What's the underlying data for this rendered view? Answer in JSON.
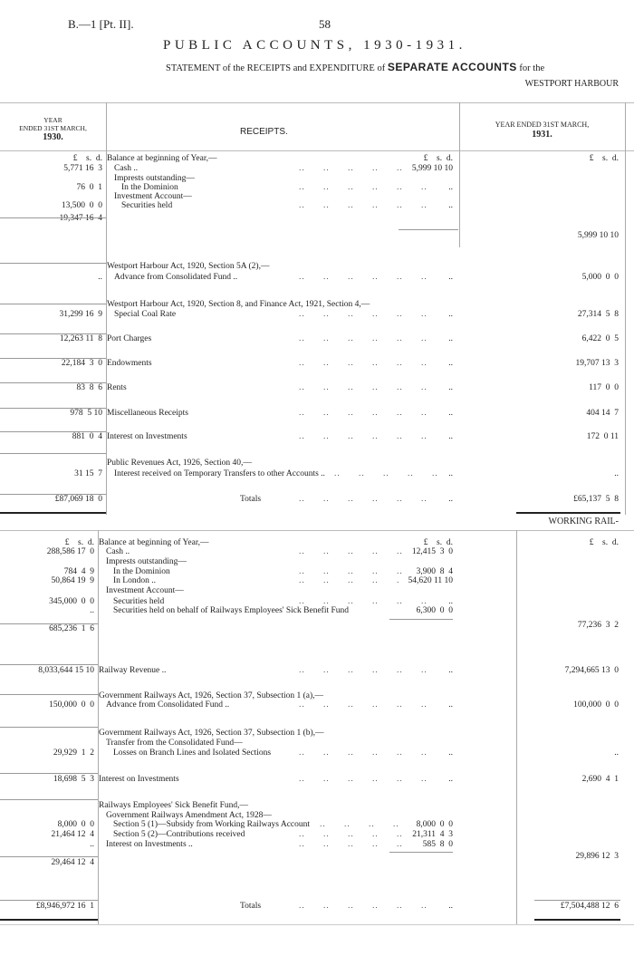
{
  "page": {
    "ref": "B.—1 [Pt. II].",
    "number": "58",
    "title": "PUBLIC ACCOUNTS, 1930-1931.",
    "statement_prefix": "STATEMENT of the RECEIPTS and EXPENDITURE of",
    "statement_bold": "SEPARATE ACCOUNTS",
    "statement_suffix": "for the"
  },
  "header": {
    "left_line1": "YEAR",
    "left_line2": "ENDED 31ST MARCH,",
    "left_year": "1930.",
    "center": "RECEIPTS.",
    "right_line1": "YEAR ENDED 31ST MARCH,",
    "right_year": "1931."
  },
  "harbour": {
    "title": "WESTPORT HARBOUR",
    "rows": [
      {
        "left": "£    s.  d.",
        "desc": "Balance at beginning of Year,—",
        "sub": "£    s.  d.",
        "right": "£    s.  d.",
        "indent": 0,
        "lead": false
      },
      {
        "left": "5,771 16  3",
        "desc": "Cash ..",
        "sub": "5,999 10 10",
        "right": "",
        "indent": 1,
        "lead": true
      },
      {
        "left": "",
        "desc": "Imprests outstanding—",
        "sub": "",
        "right": "",
        "indent": 1,
        "lead": false
      },
      {
        "left": "76  0  1",
        "desc": "In the Dominion",
        "sub": "..",
        "right": "",
        "indent": 2,
        "lead": true
      },
      {
        "left": "",
        "desc": "Investment Account—",
        "sub": "",
        "right": "",
        "indent": 1,
        "lead": false
      },
      {
        "left": "13,500  0  0",
        "desc": "Securities held",
        "sub": "..",
        "right": "",
        "indent": 2,
        "lead": true
      },
      {
        "left": "19,347 16  4",
        "desc": "",
        "sub": "",
        "right": "",
        "indent": 0,
        "lead": false
      },
      {
        "left": "",
        "desc": "",
        "sub": "",
        "right": "5,999 10 10",
        "indent": 0,
        "lead": false
      },
      {
        "left": "",
        "desc": "Westport Harbour Act, 1920, Section 5A (2),—",
        "sub": "",
        "right": "",
        "indent": 0,
        "lead": false
      },
      {
        "left": "..",
        "desc": "Advance from Consolidated Fund ..",
        "sub": "..",
        "right": "5,000  0  0",
        "indent": 1,
        "lead": true
      },
      {
        "left": "",
        "desc": "Westport Harbour Act, 1920, Section 8, and Finance Act, 1921, Section 4,—",
        "sub": "",
        "right": "",
        "indent": 0,
        "lead": false
      },
      {
        "left": "31,299 16  9",
        "desc": "Special Coal Rate",
        "sub": "..",
        "right": "27,314  5  8",
        "indent": 1,
        "lead": true
      },
      {
        "left": "12,263 11  8",
        "desc": "Port Charges",
        "sub": "..",
        "right": "6,422  0  5",
        "indent": 0,
        "lead": true
      },
      {
        "left": "22,184  3  0",
        "desc": "Endowments",
        "sub": "..",
        "right": "19,707 13  3",
        "indent": 0,
        "lead": true
      },
      {
        "left": "83  8  6",
        "desc": "Rents",
        "sub": "..",
        "right": "117  0  0",
        "indent": 0,
        "lead": true
      },
      {
        "left": "978  5 10",
        "desc": "Miscellaneous Receipts",
        "sub": "..",
        "right": "404 14  7",
        "indent": 0,
        "lead": true
      },
      {
        "left": "881  0  4",
        "desc": "Interest on Investments",
        "sub": "..",
        "right": "172  0 11",
        "indent": 0,
        "lead": true
      },
      {
        "left": "",
        "desc": "Public Revenues Act, 1926, Section 40,—",
        "sub": "",
        "right": "",
        "indent": 0,
        "lead": false
      },
      {
        "left": "31 15  7",
        "desc": "Interest received on Temporary Transfers to other Accounts ..",
        "sub": "..",
        "right": "..",
        "indent": 1,
        "lead": true
      },
      {
        "left": "£87,069 18  0",
        "desc": "Totals",
        "sub": "..",
        "right": "£65,137  5  8",
        "indent": 0,
        "lead": true,
        "total": true
      }
    ]
  },
  "railways": {
    "title": "WORKING RAIL-",
    "rows": [
      {
        "left": "£    s.  d.",
        "desc": "Balance at beginning of Year,—",
        "sub": "£    s.  d.",
        "right": "£    s.  d.",
        "indent": 0,
        "lead": false
      },
      {
        "left": "288,586 17  0",
        "desc": "Cash ..",
        "sub": "12,415  3  0",
        "right": "",
        "indent": 1,
        "lead": true
      },
      {
        "left": "",
        "desc": "Imprests outstanding—",
        "sub": "",
        "right": "",
        "indent": 1,
        "lead": false
      },
      {
        "left": "784  4  9",
        "desc": "In the Dominion",
        "sub": "3,900  8  4",
        "right": "",
        "indent": 2,
        "lead": true
      },
      {
        "left": "50,864 19  9",
        "desc": "In London ..",
        "sub": "54,620 11 10",
        "right": "",
        "indent": 2,
        "lead": true
      },
      {
        "left": "",
        "desc": "Investment Account—",
        "sub": "",
        "right": "",
        "indent": 1,
        "lead": false
      },
      {
        "left": "345,000  0  0",
        "desc": "Securities held",
        "sub": "..",
        "right": "",
        "indent": 2,
        "lead": true
      },
      {
        "left": "..",
        "desc": "Securities held on behalf of Railways Employees' Sick Benefit Fund",
        "sub": "6,300  0  0",
        "right": "",
        "indent": 2,
        "lead": false
      },
      {
        "left": "",
        "desc": "",
        "sub": "",
        "right": "77,236  3  2",
        "indent": 0,
        "lead": false
      },
      {
        "left": "685,236  1  6",
        "desc": "",
        "sub": "",
        "right": "",
        "indent": 0,
        "lead": false
      },
      {
        "left": "8,033,644 15 10",
        "desc": "Railway Revenue ..",
        "sub": "..",
        "right": "7,294,665 13  0",
        "indent": 0,
        "lead": true
      },
      {
        "left": "",
        "desc": "Government Railways Act, 1926, Section 37, Subsection 1 (a),—",
        "sub": "",
        "right": "",
        "indent": 0,
        "lead": false
      },
      {
        "left": "150,000  0  0",
        "desc": "Advance from Consolidated Fund ..",
        "sub": "..",
        "right": "100,000  0  0",
        "indent": 1,
        "lead": true
      },
      {
        "left": "",
        "desc": "Government Railways Act, 1926, Section 37, Subsection 1 (b),—",
        "sub": "",
        "right": "",
        "indent": 0,
        "lead": false
      },
      {
        "left": "",
        "desc": "Transfer from the Consolidated Fund—",
        "sub": "",
        "right": "",
        "indent": 1,
        "lead": false
      },
      {
        "left": "29,929  1  2",
        "desc": "Losses on Branch Lines and Isolated Sections",
        "sub": "..",
        "right": "..",
        "indent": 2,
        "lead": true
      },
      {
        "left": "18,698  5  3",
        "desc": "Interest on Investments",
        "sub": "..",
        "right": "2,690  4  1",
        "indent": 0,
        "lead": true
      },
      {
        "left": "",
        "desc": "Railways Employees' Sick Benefit Fund,—",
        "sub": "",
        "right": "",
        "indent": 0,
        "lead": false
      },
      {
        "left": "",
        "desc": "Government Railways Amendment Act, 1928—",
        "sub": "",
        "right": "",
        "indent": 1,
        "lead": false
      },
      {
        "left": "8,000  0  0",
        "desc": "Section 5 (1)—Subsidy from Working Railways Account",
        "sub": "8,000  0  0",
        "right": "",
        "indent": 2,
        "lead": true
      },
      {
        "left": "21,464 12  4",
        "desc": "Section 5 (2)—Contributions received",
        "sub": "21,311  4  3",
        "right": "",
        "indent": 2,
        "lead": true
      },
      {
        "left": "..",
        "desc": "Interest on Investments ..",
        "sub": "585  8  0",
        "right": "",
        "indent": 1,
        "lead": true
      },
      {
        "left": "",
        "desc": "",
        "sub": "",
        "right": "29,896 12  3",
        "indent": 0,
        "lead": false
      },
      {
        "left": "29,464 12  4",
        "desc": "",
        "sub": "",
        "right": "",
        "indent": 0,
        "lead": false
      },
      {
        "left": "£8,946,972 16  1",
        "desc": "Totals",
        "sub": "..",
        "right": "£7,504,488 12  6",
        "indent": 0,
        "lead": true,
        "total": true
      }
    ]
  }
}
